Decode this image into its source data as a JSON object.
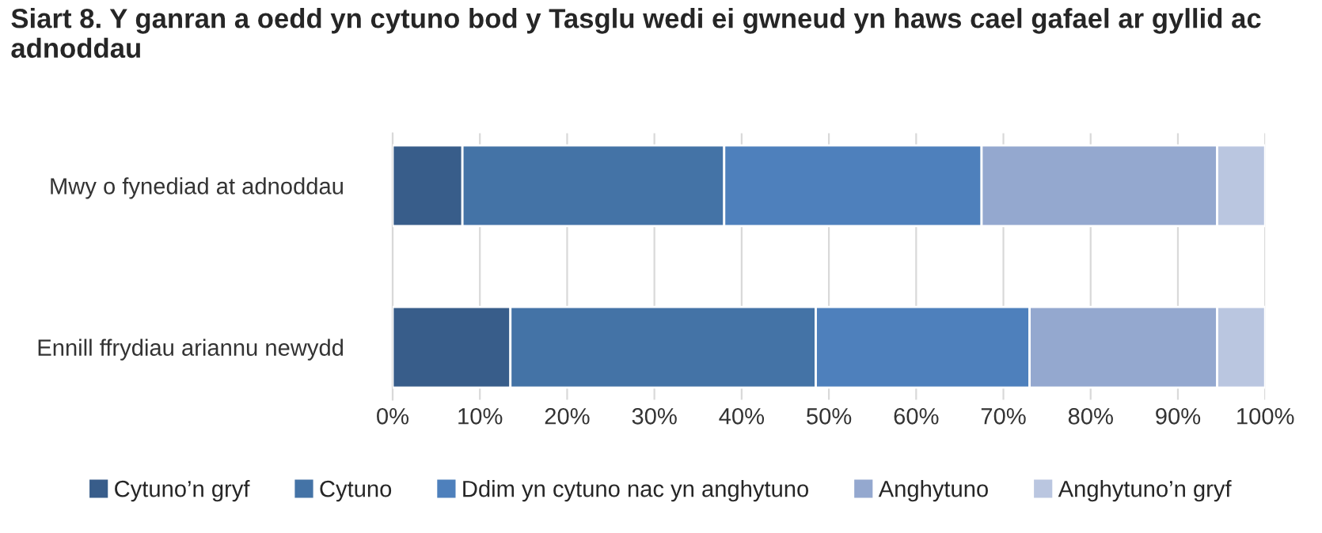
{
  "chart_data": {
    "type": "bar",
    "orientation": "horizontal",
    "stacked": true,
    "title": "Siart 8. Y ganran a oedd yn cytuno bod y Tasglu wedi ei gwneud yn haws cael gafael ar gyllid ac adnoddau",
    "categories": [
      "Mwy o fynediad at adnoddau",
      "Ennill ffrydiau ariannu newydd"
    ],
    "series": [
      {
        "name": "Cytuno’n gryf",
        "color": "#385d8a",
        "values": [
          8,
          13.5
        ]
      },
      {
        "name": "Cytuno",
        "color": "#4473a6",
        "values": [
          30,
          35
        ]
      },
      {
        "name": "Ddim yn cytuno nac yn anghytuno",
        "color": "#4e80bc",
        "values": [
          29.5,
          24.5
        ]
      },
      {
        "name": "Anghytuno",
        "color": "#94a8cf",
        "values": [
          27,
          21.5
        ]
      },
      {
        "name": "Anghytuno’n gryf",
        "color": "#bac6e0",
        "values": [
          5.5,
          5.5
        ]
      }
    ],
    "xlim": [
      0,
      100
    ],
    "xticks": [
      {
        "value": 0,
        "label": "0%"
      },
      {
        "value": 10,
        "label": "10%"
      },
      {
        "value": 20,
        "label": "20%"
      },
      {
        "value": 30,
        "label": "30%"
      },
      {
        "value": 40,
        "label": "40%"
      },
      {
        "value": 50,
        "label": "50%"
      },
      {
        "value": 60,
        "label": "60%"
      },
      {
        "value": 70,
        "label": "70%"
      },
      {
        "value": 80,
        "label": "80%"
      },
      {
        "value": 90,
        "label": "90%"
      },
      {
        "value": 100,
        "label": "100%"
      }
    ],
    "grid": "x",
    "legend": "bottom"
  }
}
